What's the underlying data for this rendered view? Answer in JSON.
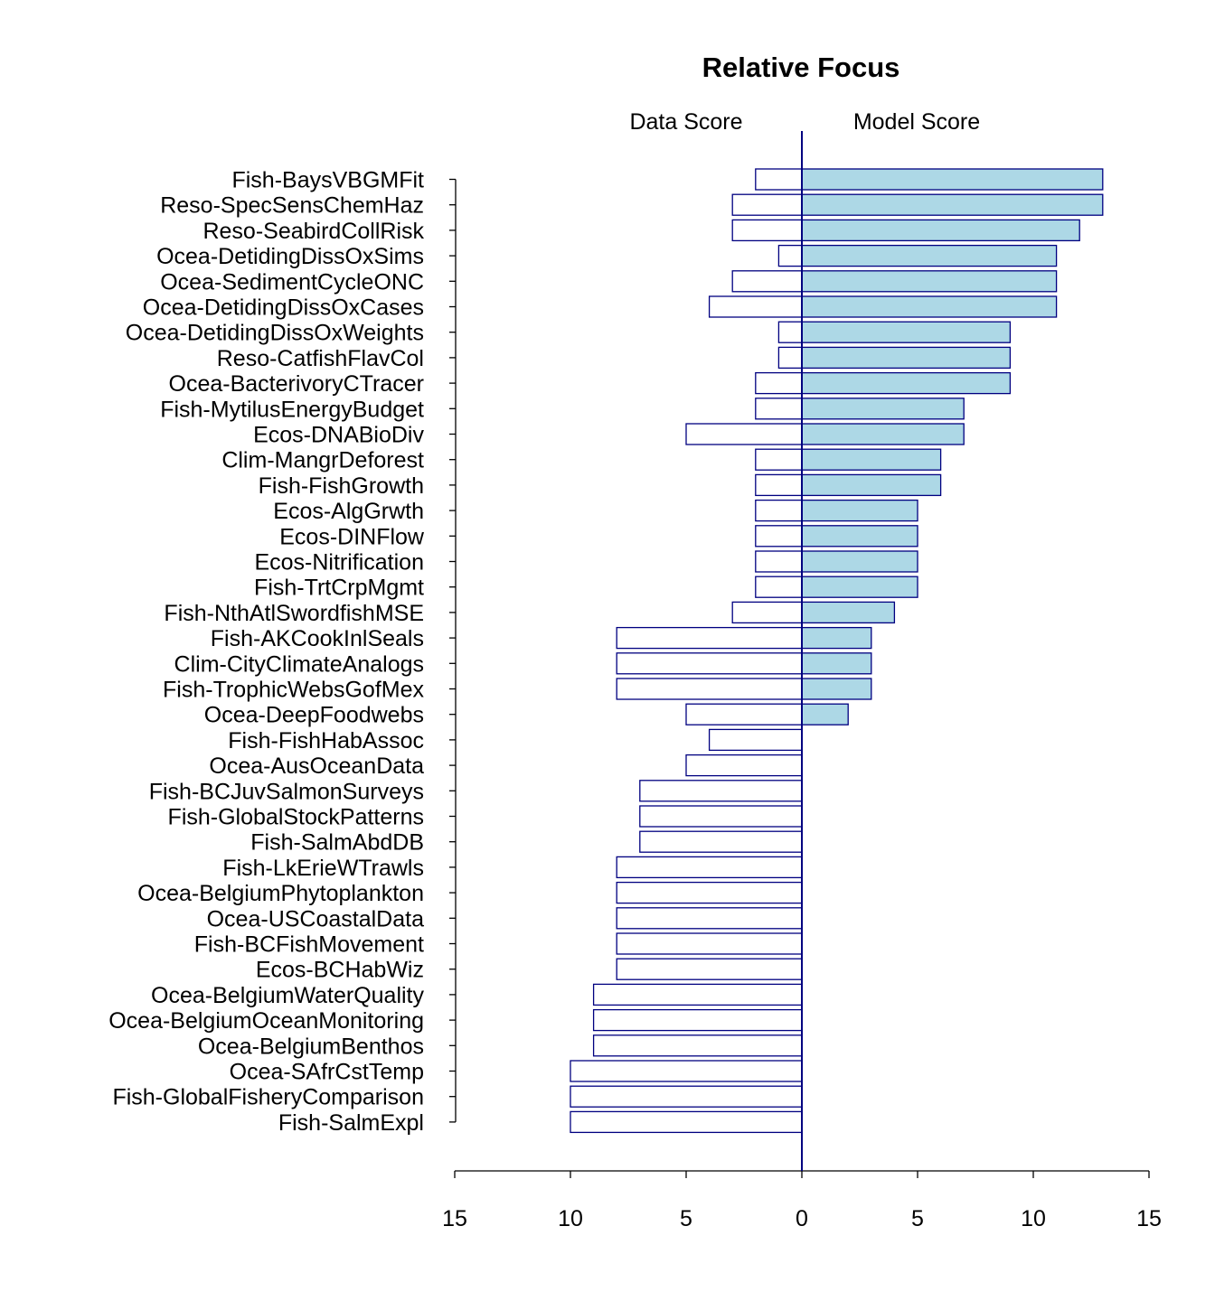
{
  "chart_data": {
    "type": "bar",
    "orientation": "horizontal-diverging",
    "title": "Relative Focus",
    "left_label": "Data Score",
    "right_label": "Model Score",
    "xlim": [
      -15,
      15
    ],
    "x_ticks": [
      -15,
      -10,
      -5,
      0,
      5,
      10,
      15
    ],
    "x_tick_labels": [
      "15",
      "10",
      "5",
      "0",
      "5",
      "10",
      "15"
    ],
    "categories": [
      "Fish-BaysVBGMFit",
      "Reso-SpecSensChemHaz",
      "Reso-SeabirdCollRisk",
      "Ocea-DetidingDissOxSims",
      "Ocea-SedimentCycleONC",
      "Ocea-DetidingDissOxCases",
      "Ocea-DetidingDissOxWeights",
      "Reso-CatfishFlavCol",
      "Ocea-BacterivoryCTracer",
      "Fish-MytilusEnergyBudget",
      "Ecos-DNABioDiv",
      "Clim-MangrDeforest",
      "Fish-FishGrowth",
      "Ecos-AlgGrwth",
      "Ecos-DINFlow",
      "Ecos-Nitrification",
      "Fish-TrtCrpMgmt",
      "Fish-NthAtlSwordfishMSE",
      "Fish-AKCookInlSeals",
      "Clim-CityClimateAnalogs",
      "Fish-TrophicWebsGofMex",
      "Ocea-DeepFoodwebs",
      "Fish-FishHabAssoc",
      "Ocea-AusOceanData",
      "Fish-BCJuvSalmonSurveys",
      "Fish-GlobalStockPatterns",
      "Fish-SalmAbdDB",
      "Fish-LkErieWTrawls",
      "Ocea-BelgiumPhytoplankton",
      "Ocea-USCoastalData",
      "Fish-BCFishMovement",
      "Ecos-BCHabWiz",
      "Ocea-BelgiumWaterQuality",
      "Ocea-BelgiumOceanMonitoring",
      "Ocea-BelgiumBenthos",
      "Ocea-SAfrCstTemp",
      "Fish-GlobalFisheryComparison",
      "Fish-SalmExpl"
    ],
    "series": [
      {
        "name": "Data Score",
        "color": "#ffffff",
        "stroke": "#000080",
        "values": [
          2,
          3,
          3,
          1,
          3,
          4,
          1,
          1,
          2,
          2,
          5,
          2,
          2,
          2,
          2,
          2,
          2,
          3,
          8,
          8,
          8,
          5,
          4,
          5,
          7,
          7,
          7,
          8,
          8,
          8,
          8,
          8,
          9,
          9,
          9,
          10,
          10,
          10
        ]
      },
      {
        "name": "Model Score",
        "color": "#add8e6",
        "stroke": "#000080",
        "values": [
          13,
          13,
          12,
          11,
          11,
          11,
          9,
          9,
          9,
          7,
          7,
          6,
          6,
          5,
          5,
          5,
          5,
          4,
          3,
          3,
          3,
          2,
          0,
          0,
          0,
          0,
          0,
          0,
          0,
          0,
          0,
          0,
          0,
          0,
          0,
          0,
          0,
          0
        ]
      }
    ],
    "zero_line_color": "#000080",
    "grid": false
  }
}
